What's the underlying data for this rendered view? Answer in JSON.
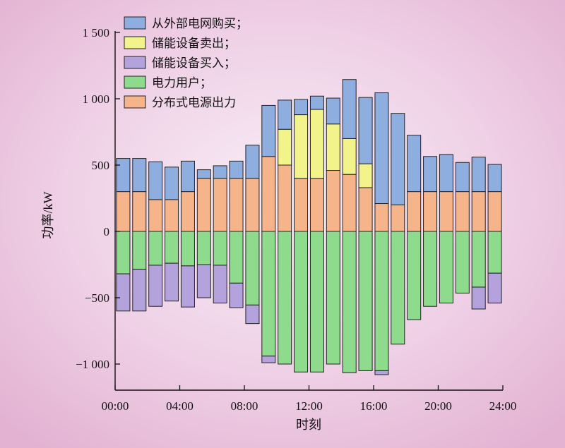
{
  "chart_data": {
    "type": "bar",
    "stacked": true,
    "xlabel": "时刻",
    "ylabel": "功率/kW",
    "ylim": [
      -1200,
      1500
    ],
    "yticks": [
      -1000,
      -500,
      0,
      500,
      1000,
      1500
    ],
    "ytick_labels": [
      "−1 000",
      "−500",
      "0",
      "500",
      "1 000",
      "1 500"
    ],
    "xticks": [
      0,
      4,
      8,
      12,
      16,
      20,
      24
    ],
    "xtick_labels": [
      "00:00",
      "04:00",
      "08:00",
      "12:00",
      "16:00",
      "20:00",
      "24:00"
    ],
    "xlim": [
      0,
      24
    ],
    "x": [
      1,
      2,
      3,
      4,
      5,
      6,
      7,
      8,
      9,
      10,
      11,
      12,
      13,
      14,
      15,
      16,
      17,
      18,
      19,
      20,
      21,
      22,
      23,
      24
    ],
    "legend_position": "top-left",
    "series": [
      {
        "name": "分布式电源出力",
        "color": "#f5b48a",
        "values": [
          300,
          300,
          240,
          240,
          300,
          400,
          400,
          400,
          400,
          565,
          500,
          400,
          400,
          460,
          430,
          330,
          210,
          200,
          300,
          300,
          300,
          300,
          300,
          300
        ]
      },
      {
        "name": "储能设备卖出；",
        "color": "#f3f38c",
        "values": [
          0,
          0,
          0,
          0,
          0,
          0,
          0,
          0,
          0,
          0,
          270,
          480,
          520,
          350,
          270,
          180,
          0,
          0,
          0,
          0,
          0,
          0,
          0,
          0
        ]
      },
      {
        "name": "从外部电网购买；",
        "color": "#8eaee0",
        "values": [
          250,
          250,
          285,
          245,
          230,
          65,
          95,
          130,
          250,
          385,
          220,
          115,
          100,
          195,
          445,
          500,
          835,
          690,
          425,
          265,
          280,
          220,
          260,
          205
        ]
      },
      {
        "name": "电力用户；",
        "color": "#8edb8e",
        "values": [
          -320,
          -285,
          -255,
          -240,
          -260,
          -250,
          -255,
          -390,
          -555,
          -940,
          -1000,
          -1060,
          -1060,
          -1000,
          -1065,
          -1050,
          -1050,
          -850,
          -665,
          -565,
          -540,
          -465,
          -420,
          -315
        ]
      },
      {
        "name": "储能设备买入；",
        "color": "#b3a2dc",
        "values": [
          -280,
          -315,
          -310,
          -285,
          -310,
          -250,
          -285,
          -185,
          -140,
          -50,
          0,
          0,
          0,
          0,
          0,
          0,
          -30,
          0,
          0,
          0,
          0,
          0,
          -165,
          -225
        ]
      }
    ],
    "legend_order": [
      "从外部电网购买；",
      "储能设备卖出；",
      "储能设备买入；",
      "电力用户；",
      "分布式电源出力"
    ]
  }
}
